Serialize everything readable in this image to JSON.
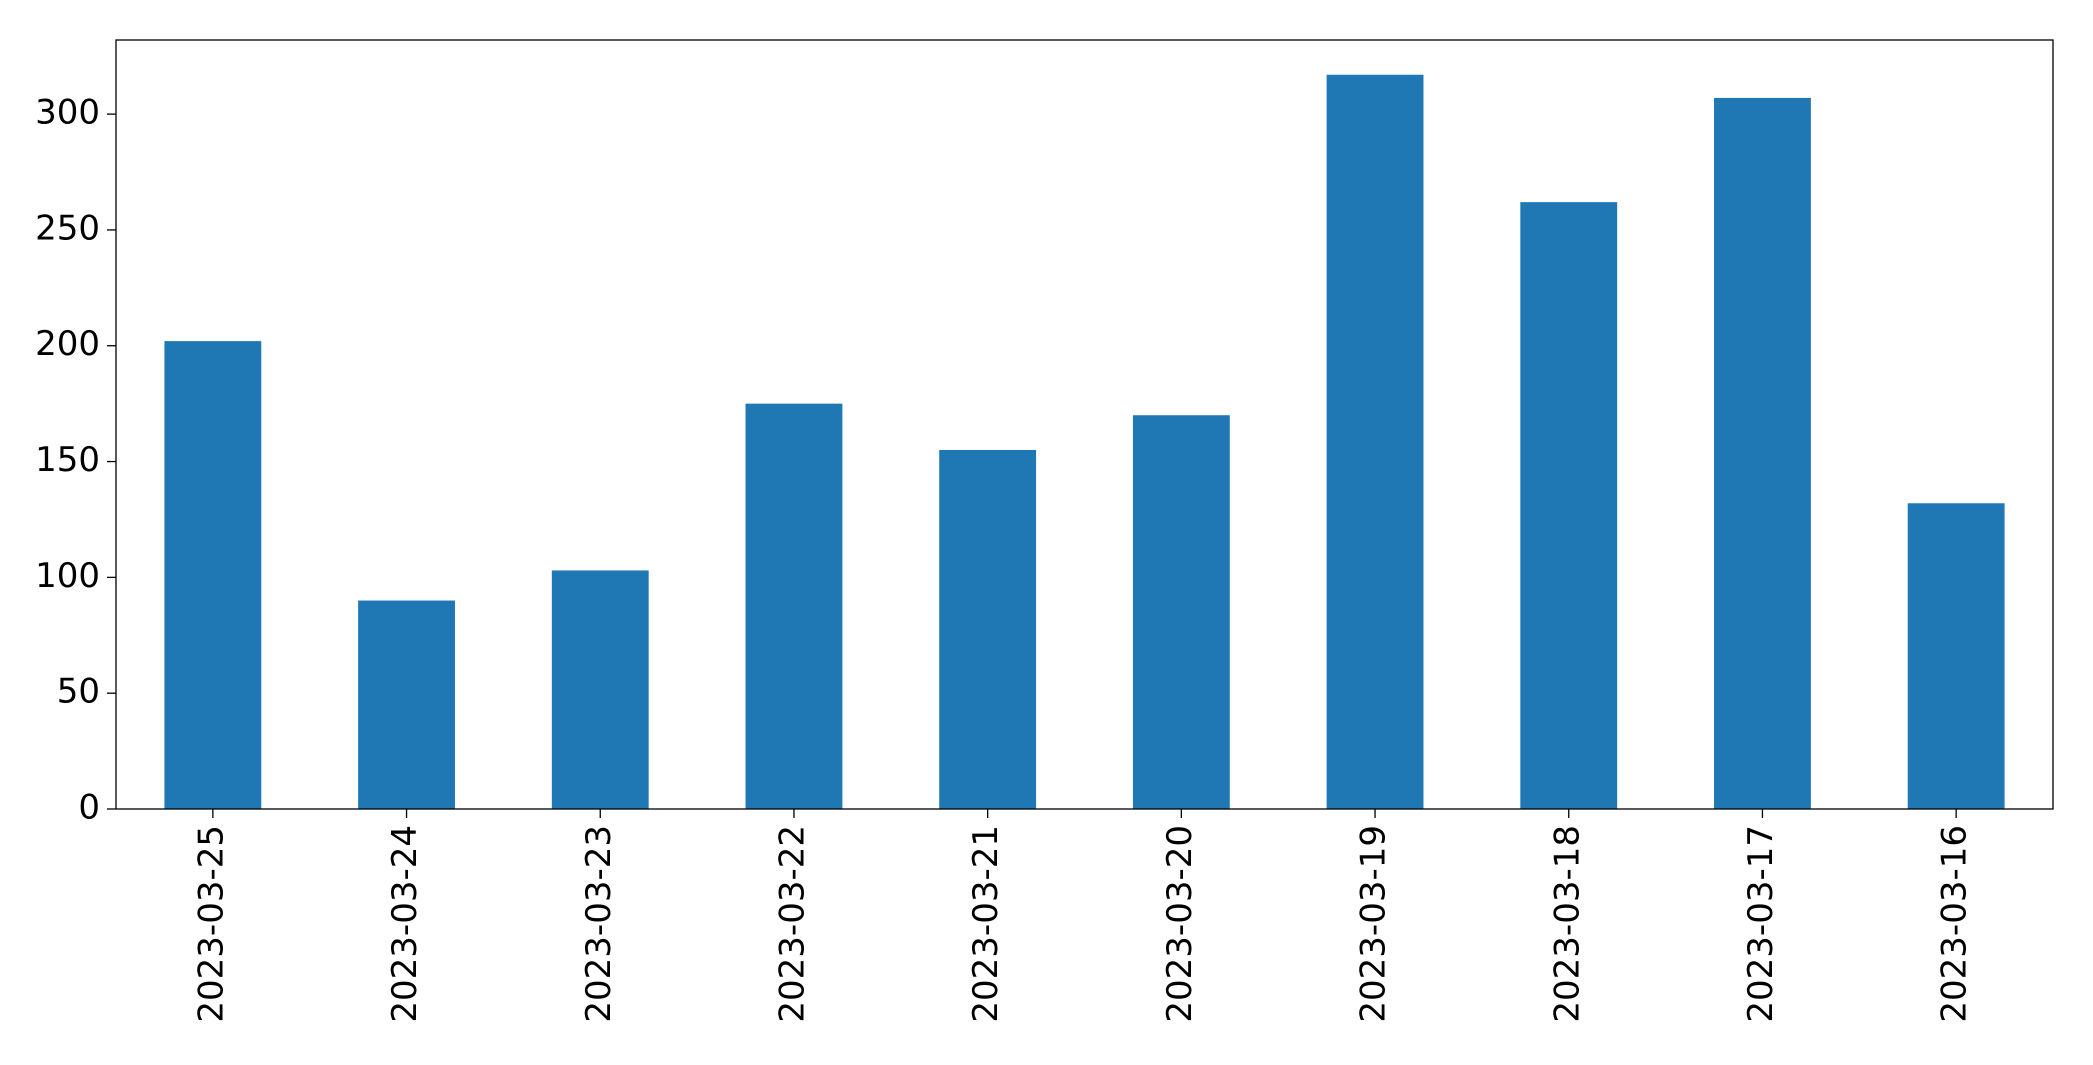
{
  "chart_data": {
    "type": "bar",
    "categories": [
      "2023-03-25",
      "2023-03-24",
      "2023-03-23",
      "2023-03-22",
      "2023-03-21",
      "2023-03-20",
      "2023-03-19",
      "2023-03-18",
      "2023-03-17",
      "2023-03-16"
    ],
    "values": [
      202,
      90,
      103,
      175,
      155,
      170,
      317,
      262,
      307,
      132
    ],
    "color": "#1f77b4",
    "ylim": [
      0,
      332
    ],
    "yticks": [
      0,
      50,
      100,
      150,
      200,
      250,
      300
    ],
    "grid": false
  }
}
